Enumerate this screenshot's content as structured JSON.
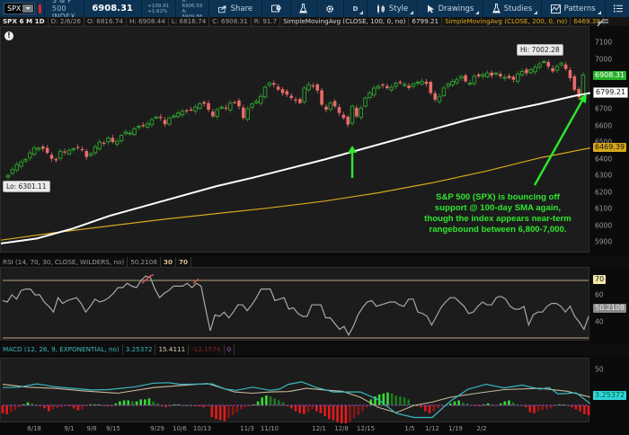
{
  "toolbar": {
    "symbol": "SPX",
    "instrument_name": "S & P 500 INDEX",
    "last_price": "6908.31",
    "change_abs": "+109.91",
    "change_pct": "+1.62%",
    "bid": "B: 6906.59",
    "ask": "A: 6909.88",
    "share_label": "Share",
    "aggregation_label": "D",
    "style_label": "Style",
    "drawings_label": "Drawings",
    "studies_label": "Studies",
    "patterns_label": "Patterns",
    "icons": [
      "link-icon",
      "share-icon",
      "alert-icon",
      "flask-icon",
      "gear-icon",
      "style-icon",
      "cursor-icon",
      "studies-flask-icon",
      "patterns-icon",
      "menu-icon"
    ]
  },
  "study_header": {
    "title": "SPX 6 M 1D",
    "date": "D: 2/6/26",
    "open": "O: 6816.74",
    "high": "H: 6908.44",
    "low": "L: 6816.74",
    "close": "C: 6908.31",
    "range": "R: 91.7",
    "sma100_label": "SimpleMovingAvg (CLOSE, 100, 0, no)",
    "sma100_value": "6799.21",
    "sma200_label": "SimpleMovingAvg (CLOSE, 200, 0, no)",
    "sma200_value": "6469.39"
  },
  "price_panel": {
    "y_ticks": [
      "7100",
      "7000",
      "6900",
      "6800",
      "6700",
      "6600",
      "6500",
      "6400",
      "6300",
      "6200",
      "6100",
      "6000",
      "5900"
    ],
    "last_tag": "6908.31",
    "sma100_tag": "6799.21",
    "sma200_tag": "6469.39",
    "hi_callout": "Hi: 7002.28",
    "lo_callout": "Lo: 6301.11",
    "annotation": "S&P 500 (SPX) is bouncing off support @ 100-day SMA again, though the index appears near-term rangebound between 6,800-7,000.",
    "annotation_lines": [
      "S&P 500 (SPX) is bouncing off",
      "support @ 100-day SMA again,",
      "though the index appears near-term",
      "rangebound between 6,800-7,000."
    ]
  },
  "rsi_panel": {
    "label": "RSI (14, 70, 30, CLOSE, WILDERS, no)",
    "value": "50.2108",
    "oversold": "30",
    "overbought": "70",
    "y_ticks": [
      "70",
      "60",
      "40"
    ],
    "value_tag": "50.2108"
  },
  "macd_panel": {
    "label": "MACD (12, 26, 9, EXPONENTIAL, no)",
    "value": "3.25372",
    "avg": "15.4111",
    "diff": "-12.1574",
    "zero": "0",
    "y_ticks": [
      "50"
    ],
    "value_tag": "3.25372"
  },
  "x_axis": {
    "labels": [
      "8/18",
      "9/1",
      "9/8",
      "9/15",
      "9/29",
      "10/6",
      "10/13",
      "11/3",
      "11/10",
      "12/1",
      "12/8",
      "12/15",
      "1/5",
      "1/12",
      "1/19",
      "2/2"
    ]
  },
  "colors": {
    "toolbar_bg": "#0d3354",
    "panel_bg": "#1c1c1c",
    "up_candle": "#2e9b2e",
    "down_candle": "#e86b6b",
    "sma100": "#ffffff",
    "sma200": "#d7a71c",
    "annotation": "#2ee82e",
    "last_tag": "#27b227",
    "macd_line": "#3ab8c0",
    "macd_avg": "#c8b89a",
    "rsi_line": "#a8a8a8"
  },
  "chart_data": {
    "type": "candlestick",
    "title": "SPX 6 M 1D",
    "ylim": [
      5860,
      7150
    ],
    "x_labels": [
      "8/18",
      "9/1",
      "9/8",
      "9/15",
      "9/29",
      "10/6",
      "10/13",
      "11/3",
      "11/10",
      "12/1",
      "12/8",
      "12/15",
      "1/5",
      "1/12",
      "1/19",
      "2/2"
    ],
    "high": 7002.28,
    "low": 6301.11,
    "last_close": 6908.31,
    "sma100_last": 6799.21,
    "sma200_last": 6469.39,
    "rsi_last": 50.2108,
    "macd_last": 3.25372,
    "macd_avg_last": 15.4111,
    "macd_diff_last": -12.1574
  }
}
